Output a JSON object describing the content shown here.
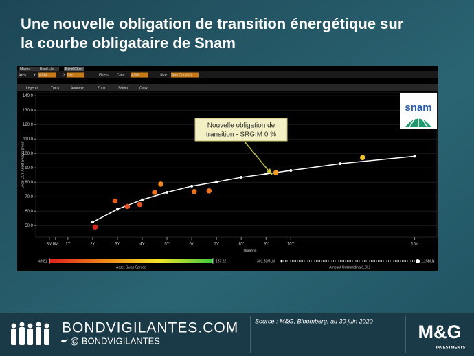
{
  "title": [
    "Une nouvelle obligation de transition énergétique sur",
    "la courbe obligataire de Snam"
  ],
  "toolbar": {
    "tabs": [
      "Matrix",
      "Bond List",
      "Bond Chart"
    ],
    "controls": [
      "Axes:",
      "Y",
      "ASW",
      "X",
      "Dur",
      "Filters:",
      "Color",
      "ASW",
      "Size",
      "Amt Out (LC)"
    ],
    "menu": [
      "Legend",
      "Track",
      "Annotate",
      "Zoom",
      "Select",
      "Copy"
    ]
  },
  "logo": "snam",
  "chart_data": {
    "type": "scatter",
    "x_label": "Duration",
    "y_label": "Local CCY Asset Swap Spread",
    "xlim": [
      -0.3,
      15.9
    ],
    "ylim": [
      42,
      142
    ],
    "xticks": [
      {
        "value": 0.25,
        "label": "3M"
      },
      {
        "value": 0.5,
        "label": "6M"
      },
      {
        "value": 1,
        "label": "1Y"
      },
      {
        "value": 2,
        "label": "2Y"
      },
      {
        "value": 3,
        "label": "3Y"
      },
      {
        "value": 4,
        "label": "4Y"
      },
      {
        "value": 5,
        "label": "5Y"
      },
      {
        "value": 6,
        "label": "6Y"
      },
      {
        "value": 7,
        "label": "7Y"
      },
      {
        "value": 8,
        "label": "8Y"
      },
      {
        "value": 9,
        "label": "9Y"
      },
      {
        "value": 10,
        "label": "10Y"
      },
      {
        "value": 15,
        "label": "15Y"
      }
    ],
    "yticks": [
      {
        "value": 50,
        "label": "50.0"
      },
      {
        "value": 60,
        "label": "60.0"
      },
      {
        "value": 70,
        "label": "70.0"
      },
      {
        "value": 80,
        "label": "80.0"
      },
      {
        "value": 90,
        "label": "90.0"
      },
      {
        "value": 100,
        "label": "100.0"
      },
      {
        "value": 110,
        "label": "110.0"
      },
      {
        "value": 120,
        "label": "120.0"
      },
      {
        "value": 130,
        "label": "130.0"
      },
      {
        "value": 140,
        "label": "140.0"
      }
    ],
    "grid": true,
    "curve": {
      "color": "#ffffff",
      "x": [
        2,
        3,
        4,
        5,
        6,
        7,
        8,
        9,
        10,
        12,
        15
      ],
      "values": [
        52.4,
        61.3,
        67.9,
        73,
        77.3,
        80.2,
        83.4,
        85.8,
        88.2,
        92.9,
        98
      ]
    },
    "bonds": {
      "x": [
        2.1,
        2.9,
        3.4,
        3.9,
        4.5,
        4.75,
        6.1,
        6.7,
        9.4,
        12.9
      ],
      "values": [
        49,
        67,
        63.2,
        64.6,
        73,
        78.7,
        73.5,
        74,
        86.7,
        97.1
      ]
    },
    "annotation": [
      "Nouvelle obligation de",
      "transition - SRGIM 0 %"
    ],
    "colorbar": {
      "title": "Asset Swap Spread",
      "min": 49.81,
      "max": 137.62,
      "colors": [
        "#e0201b",
        "#f0861a",
        "#f5e62a",
        "#3cc83c"
      ]
    },
    "sizebar": {
      "title": "Amount Outstanding (LCL)",
      "min": {
        "value": 301530000,
        "label": "301.53MLN"
      },
      "max": {
        "value": 1250000000,
        "label": "1.25BLN"
      }
    }
  },
  "footer": {
    "site": "BONDVIGILANTES.COM",
    "handle": "@ BONDVIGILANTES",
    "source": "Source : M&G, Bloomberg, au 30 juin 2020",
    "brand": "M&G",
    "brand_sub": "INVESTMENTS"
  }
}
